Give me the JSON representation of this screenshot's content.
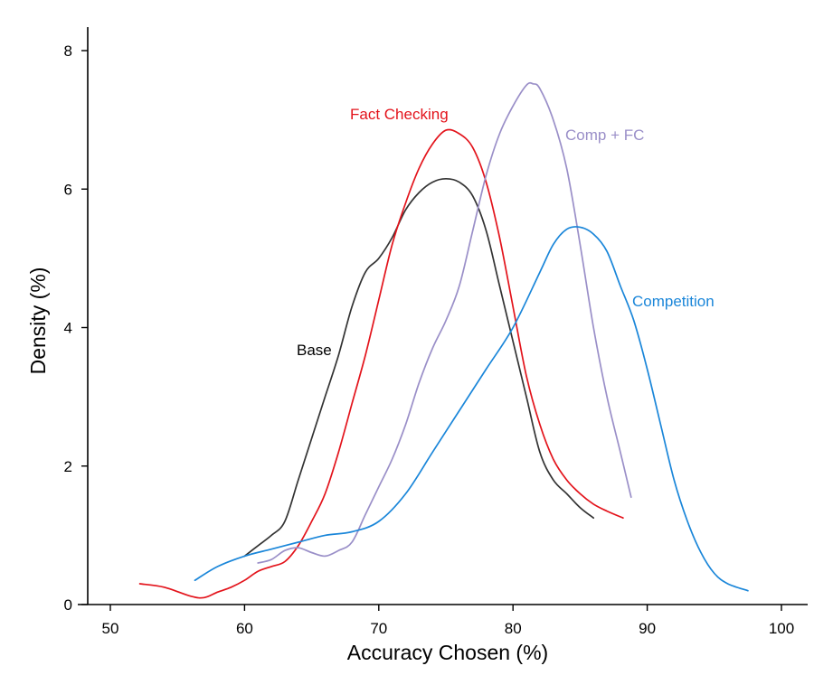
{
  "chart_data": {
    "type": "line",
    "title": "",
    "xlabel": "Accuracy Chosen (%)",
    "ylabel": "Density (%)",
    "xlim": [
      48,
      102
    ],
    "ylim": [
      0,
      8.3
    ],
    "xticks": [
      50,
      60,
      70,
      80,
      90,
      100
    ],
    "yticks": [
      0,
      2,
      4,
      6,
      8
    ],
    "grid": false,
    "legend": "inline labels",
    "series": [
      {
        "name": "Base",
        "color": "#333333",
        "x": [
          60,
          61,
          62,
          63,
          64,
          65,
          66,
          67,
          68,
          69,
          70,
          71,
          72,
          73,
          74,
          75,
          76,
          77,
          78,
          79,
          80,
          81,
          82,
          83,
          84,
          85,
          86
        ],
        "y": [
          0.7,
          0.85,
          1.0,
          1.2,
          1.8,
          2.4,
          3.0,
          3.6,
          4.3,
          4.8,
          5.0,
          5.3,
          5.7,
          5.95,
          6.1,
          6.15,
          6.1,
          5.9,
          5.4,
          4.6,
          3.8,
          3.0,
          2.2,
          1.8,
          1.6,
          1.4,
          1.25
        ]
      },
      {
        "name": "Fact Checking",
        "color": "#e3131b",
        "x": [
          52.2,
          54,
          56,
          57,
          58,
          59,
          60,
          61,
          62,
          63,
          64,
          65,
          66,
          67,
          68,
          69,
          70,
          71,
          72,
          73,
          74,
          75,
          76,
          77,
          78,
          79,
          80,
          81,
          82,
          83,
          84,
          85,
          86,
          87,
          88.2
        ],
        "y": [
          0.3,
          0.25,
          0.12,
          0.1,
          0.18,
          0.25,
          0.35,
          0.48,
          0.55,
          0.62,
          0.85,
          1.2,
          1.6,
          2.2,
          2.9,
          3.6,
          4.4,
          5.2,
          5.8,
          6.3,
          6.65,
          6.85,
          6.8,
          6.6,
          6.1,
          5.3,
          4.3,
          3.3,
          2.6,
          2.1,
          1.8,
          1.6,
          1.45,
          1.35,
          1.25
        ]
      },
      {
        "name": "Comp + FC",
        "color": "#9a8fc8",
        "x": [
          61,
          62,
          63,
          64,
          65,
          66,
          67,
          68,
          69,
          70,
          71,
          72,
          73,
          74,
          75,
          76,
          77,
          78,
          79,
          80,
          81,
          81.5,
          82,
          83,
          84,
          85,
          86,
          87,
          88,
          88.8
        ],
        "y": [
          0.6,
          0.65,
          0.78,
          0.82,
          0.75,
          0.7,
          0.78,
          0.9,
          1.3,
          1.7,
          2.1,
          2.6,
          3.2,
          3.7,
          4.1,
          4.6,
          5.4,
          6.2,
          6.8,
          7.2,
          7.5,
          7.52,
          7.45,
          7.0,
          6.3,
          5.2,
          4.0,
          3.0,
          2.2,
          1.55
        ]
      },
      {
        "name": "Competition",
        "color": "#1a86d9",
        "x": [
          56.3,
          58,
          60,
          62,
          64,
          66,
          68,
          70,
          72,
          74,
          76,
          78,
          80,
          82,
          83,
          84,
          85,
          86,
          87,
          88,
          89,
          90,
          91,
          92,
          93,
          94,
          95,
          96,
          97.5
        ],
        "y": [
          0.35,
          0.55,
          0.7,
          0.8,
          0.9,
          1.0,
          1.05,
          1.2,
          1.6,
          2.2,
          2.8,
          3.4,
          4.0,
          4.8,
          5.2,
          5.42,
          5.45,
          5.35,
          5.1,
          4.6,
          4.1,
          3.4,
          2.6,
          1.8,
          1.2,
          0.75,
          0.45,
          0.3,
          0.2
        ]
      }
    ],
    "annotations": [
      {
        "text": "Base",
        "color": "#000000"
      },
      {
        "text": "Fact Checking",
        "color": "#e3131b"
      },
      {
        "text": "Comp + FC",
        "color": "#9a8fc8"
      },
      {
        "text": "Competition",
        "color": "#1a86d9"
      }
    ]
  }
}
